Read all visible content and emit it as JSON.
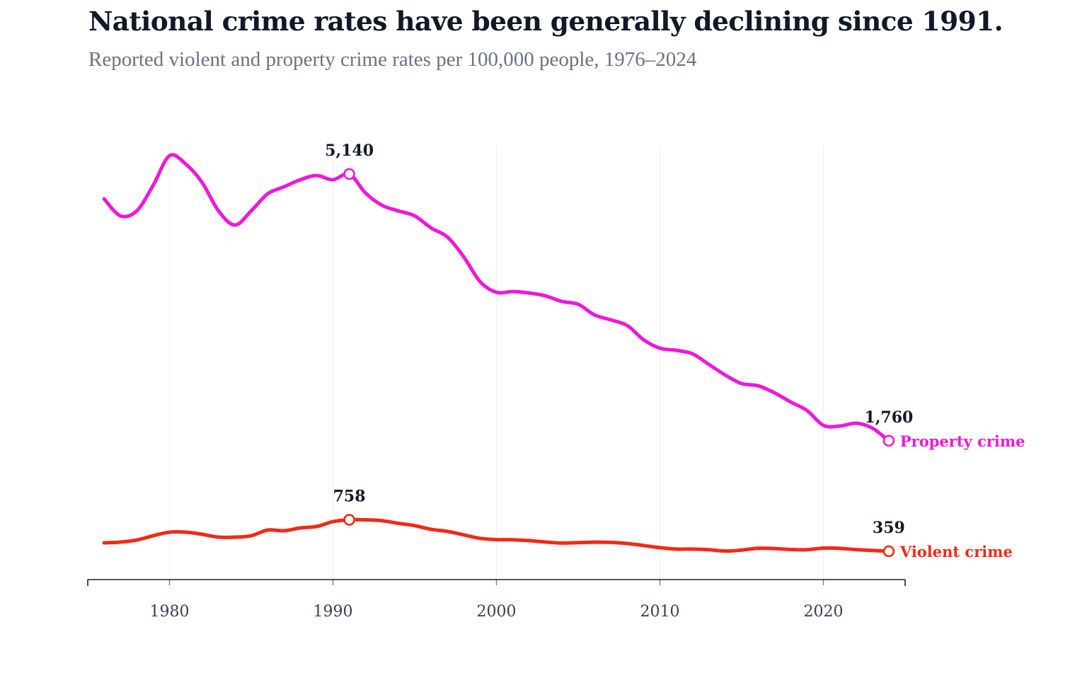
{
  "header": {
    "title": "National crime rates have been generally declining since 1991.",
    "subtitle": "Reported violent and property crime rates per 100,000 people, 1976–2024"
  },
  "chart_data": {
    "type": "line",
    "title": "National crime rates have been generally declining since 1991.",
    "subtitle": "Reported violent and property crime rates per 100,000 people, 1976–2024",
    "xlabel": "",
    "ylabel": "",
    "xlim": [
      1975,
      2025
    ],
    "ylim": [
      0,
      5500
    ],
    "x_ticks": [
      1980,
      1990,
      2000,
      2010,
      2020
    ],
    "x_tick_labels": [
      "1980",
      "1990",
      "2000",
      "2010",
      "2020"
    ],
    "grid": "vertical",
    "legend": "inline-right",
    "x": [
      1976,
      1977,
      1978,
      1979,
      1980,
      1981,
      1982,
      1983,
      1984,
      1985,
      1986,
      1987,
      1988,
      1989,
      1990,
      1991,
      1992,
      1993,
      1994,
      1995,
      1996,
      1997,
      1998,
      1999,
      2000,
      2001,
      2002,
      2003,
      2004,
      2005,
      2006,
      2007,
      2008,
      2009,
      2010,
      2011,
      2012,
      2013,
      2014,
      2015,
      2016,
      2017,
      2018,
      2019,
      2020,
      2021,
      2022,
      2023,
      2024
    ],
    "series": [
      {
        "name": "Property crime",
        "color": "#ee18d8",
        "values": [
          4825,
          4610,
          4673,
          4996,
          5372,
          5265,
          5031,
          4673,
          4493,
          4673,
          4888,
          4978,
          5067,
          5121,
          5067,
          5140,
          4897,
          4744,
          4673,
          4610,
          4457,
          4341,
          4090,
          3776,
          3641,
          3650,
          3632,
          3596,
          3525,
          3489,
          3354,
          3291,
          3220,
          3040,
          2933,
          2906,
          2861,
          2726,
          2592,
          2484,
          2457,
          2368,
          2251,
          2143,
          1955,
          1946,
          1982,
          1919,
          1760
        ],
        "annotations": [
          {
            "year": 1991,
            "label": "5,140"
          },
          {
            "year": 2024,
            "label": "1,760"
          }
        ]
      },
      {
        "name": "Violent crime",
        "color": "#f02a17",
        "values": [
          466,
          475,
          502,
          556,
          601,
          601,
          574,
          538,
          538,
          556,
          628,
          619,
          655,
          673,
          735,
          758,
          757,
          747,
          713,
          684,
          637,
          611,
          567,
          523,
          507,
          505,
          494,
          476,
          463,
          469,
          474,
          472,
          458,
          432,
          405,
          387,
          387,
          379,
          362,
          374,
          397,
          394,
          381,
          379,
          399,
          396,
          380,
          370,
          359
        ],
        "annotations": [
          {
            "year": 1991,
            "label": "758"
          },
          {
            "year": 2024,
            "label": "359"
          }
        ]
      }
    ]
  }
}
